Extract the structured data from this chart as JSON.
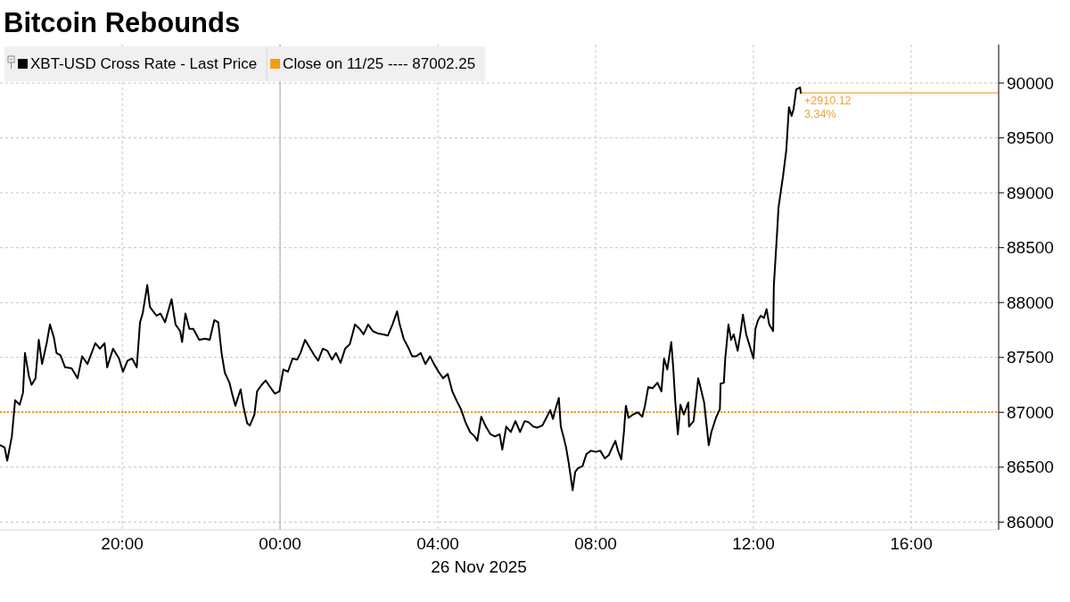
{
  "chart_data": {
    "type": "line",
    "title": "Bitcoin Rebounds",
    "xlabel": "26 Nov 2025",
    "xlim": [
      "2025-11-25T16:54",
      "2025-11-26T18:13"
    ],
    "xticks": [
      {
        "value": "2025-11-25T20:00",
        "label": "20:00"
      },
      {
        "value": "2025-11-26T00:00",
        "label": "00:00"
      },
      {
        "value": "2025-11-26T04:00",
        "label": "04:00"
      },
      {
        "value": "2025-11-26T08:00",
        "label": "08:00"
      },
      {
        "value": "2025-11-26T12:00",
        "label": "12:00"
      },
      {
        "value": "2025-11-26T16:00",
        "label": "16:00"
      }
    ],
    "ylim": [
      85930,
      90350
    ],
    "yticks": [
      86000,
      86500,
      87000,
      87500,
      88000,
      88500,
      89000,
      89500,
      90000
    ],
    "grid": true,
    "legend": "top left",
    "x": [
      "2025-11-25T16:54",
      "2025-11-25T17:01",
      "2025-11-25T17:05",
      "2025-11-25T17:12",
      "2025-11-25T17:17",
      "2025-11-25T17:24",
      "2025-11-25T17:29",
      "2025-11-25T17:32",
      "2025-11-25T17:38",
      "2025-11-25T17:42",
      "2025-11-25T17:48",
      "2025-11-25T17:53",
      "2025-11-25T17:58",
      "2025-11-25T18:05",
      "2025-11-25T18:10",
      "2025-11-25T18:16",
      "2025-11-25T18:20",
      "2025-11-25T18:26",
      "2025-11-25T18:33",
      "2025-11-25T18:43",
      "2025-11-25T18:52",
      "2025-11-25T18:59",
      "2025-11-25T19:07",
      "2025-11-25T19:19",
      "2025-11-25T19:26",
      "2025-11-25T19:33",
      "2025-11-25T19:37",
      "2025-11-25T19:46",
      "2025-11-25T19:55",
      "2025-11-25T20:01",
      "2025-11-25T20:08",
      "2025-11-25T20:15",
      "2025-11-25T20:22",
      "2025-11-25T20:27",
      "2025-11-25T20:31",
      "2025-11-25T20:38",
      "2025-11-25T20:42",
      "2025-11-25T20:52",
      "2025-11-25T20:58",
      "2025-11-25T21:05",
      "2025-11-25T21:15",
      "2025-11-25T21:21",
      "2025-11-25T21:28",
      "2025-11-25T21:31",
      "2025-11-25T21:36",
      "2025-11-25T21:42",
      "2025-11-25T21:48",
      "2025-11-25T21:57",
      "2025-11-25T22:06",
      "2025-11-25T22:13",
      "2025-11-25T22:20",
      "2025-11-25T22:26",
      "2025-11-25T22:31",
      "2025-11-25T22:36",
      "2025-11-25T22:43",
      "2025-11-25T22:47",
      "2025-11-25T22:52",
      "2025-11-25T23:00",
      "2025-11-25T23:04",
      "2025-11-25T23:10",
      "2025-11-25T23:14",
      "2025-11-25T23:21",
      "2025-11-25T23:25",
      "2025-11-25T23:32",
      "2025-11-25T23:38",
      "2025-11-25T23:45",
      "2025-11-25T23:52",
      "2025-11-25T23:59",
      "2025-11-26T00:05",
      "2025-11-26T00:12",
      "2025-11-26T00:19",
      "2025-11-26T00:26",
      "2025-11-26T00:31",
      "2025-11-26T00:38",
      "2025-11-26T00:45",
      "2025-11-26T00:52",
      "2025-11-26T00:58",
      "2025-11-26T01:05",
      "2025-11-26T01:12",
      "2025-11-26T01:19",
      "2025-11-26T01:25",
      "2025-11-26T01:32",
      "2025-11-26T01:39",
      "2025-11-26T01:46",
      "2025-11-26T01:50",
      "2025-11-26T01:54",
      "2025-11-26T02:01",
      "2025-11-26T02:07",
      "2025-11-26T02:14",
      "2025-11-26T02:21",
      "2025-11-26T02:28",
      "2025-11-26T02:37",
      "2025-11-26T02:44",
      "2025-11-26T02:51",
      "2025-11-26T02:58",
      "2025-11-26T03:02",
      "2025-11-26T03:08",
      "2025-11-26T03:15",
      "2025-11-26T03:21",
      "2025-11-26T03:27",
      "2025-11-26T03:34",
      "2025-11-26T03:41",
      "2025-11-26T03:48",
      "2025-11-26T03:55",
      "2025-11-26T04:01",
      "2025-11-26T04:08",
      "2025-11-26T04:15",
      "2025-11-26T04:22",
      "2025-11-26T04:29",
      "2025-11-26T04:35",
      "2025-11-26T04:42",
      "2025-11-26T04:49",
      "2025-11-26T04:56",
      "2025-11-26T05:00",
      "2025-11-26T05:06",
      "2025-11-26T05:13",
      "2025-11-26T05:20",
      "2025-11-26T05:27",
      "2025-11-26T05:34",
      "2025-11-26T05:38",
      "2025-11-26T05:44",
      "2025-11-26T05:51",
      "2025-11-26T05:58",
      "2025-11-26T06:05",
      "2025-11-26T06:12",
      "2025-11-26T06:18",
      "2025-11-26T06:25",
      "2025-11-26T06:31",
      "2025-11-26T06:39",
      "2025-11-26T06:45",
      "2025-11-26T06:51",
      "2025-11-26T06:55",
      "2025-11-26T06:59",
      "2025-11-26T07:04",
      "2025-11-26T07:07",
      "2025-11-26T07:11",
      "2025-11-26T07:15",
      "2025-11-26T07:19",
      "2025-11-26T07:25",
      "2025-11-26T07:29",
      "2025-11-26T07:33",
      "2025-11-26T07:40",
      "2025-11-26T07:46",
      "2025-11-26T07:53",
      "2025-11-26T08:00",
      "2025-11-26T08:07",
      "2025-11-26T08:14",
      "2025-11-26T08:20",
      "2025-11-26T08:26",
      "2025-11-26T08:30",
      "2025-11-26T08:34",
      "2025-11-26T08:39",
      "2025-11-26T08:43",
      "2025-11-26T08:46",
      "2025-11-26T08:50",
      "2025-11-26T08:57",
      "2025-11-26T09:04",
      "2025-11-26T09:11",
      "2025-11-26T09:15",
      "2025-11-26T09:20",
      "2025-11-26T09:27",
      "2025-11-26T09:34",
      "2025-11-26T09:40",
      "2025-11-26T09:44",
      "2025-11-26T09:49",
      "2025-11-26T09:55",
      "2025-11-26T09:58",
      "2025-11-26T10:01",
      "2025-11-26T10:05",
      "2025-11-26T10:09",
      "2025-11-26T10:14",
      "2025-11-26T10:21",
      "2025-11-26T10:22",
      "2025-11-26T10:29",
      "2025-11-26T10:36",
      "2025-11-26T10:41",
      "2025-11-26T10:45",
      "2025-11-26T10:52",
      "2025-11-26T10:56",
      "2025-11-26T11:03",
      "2025-11-26T11:09",
      "2025-11-26T11:10",
      "2025-11-26T11:15",
      "2025-11-26T11:17",
      "2025-11-26T11:22",
      "2025-11-26T11:26",
      "2025-11-26T11:30",
      "2025-11-26T11:36",
      "2025-11-26T11:40",
      "2025-11-26T11:44",
      "2025-11-26T11:49",
      "2025-11-26T11:53",
      "2025-11-26T12:00",
      "2025-11-26T12:03",
      "2025-11-26T12:07",
      "2025-11-26T12:11",
      "2025-11-26T12:16",
      "2025-11-26T12:20",
      "2025-11-26T12:24",
      "2025-11-26T12:30",
      "2025-11-26T12:31",
      "2025-11-26T12:37",
      "2025-11-26T12:38",
      "2025-11-26T12:43",
      "2025-11-26T12:45",
      "2025-11-26T12:50",
      "2025-11-26T12:54",
      "2025-11-26T12:58",
      "2025-11-26T13:01",
      "2025-11-26T13:05",
      "2025-11-26T13:11",
      "2025-11-26T13:12"
    ],
    "series": [
      {
        "name": "XBT-USD Cross Rate - Last Price",
        "color": "#000000",
        "values": [
          86700,
          86680,
          86560,
          86780,
          87110,
          87070,
          87180,
          87540,
          87330,
          87250,
          87310,
          87660,
          87440,
          87630,
          87800,
          87680,
          87540,
          87520,
          87410,
          87400,
          87310,
          87510,
          87440,
          87630,
          87580,
          87630,
          87410,
          87580,
          87490,
          87370,
          87470,
          87490,
          87410,
          87820,
          87900,
          88160,
          87960,
          87880,
          87900,
          87820,
          88030,
          87800,
          87740,
          87640,
          87900,
          87760,
          87760,
          87660,
          87670,
          87660,
          87840,
          87820,
          87540,
          87360,
          87270,
          87170,
          87060,
          87210,
          87060,
          86900,
          86880,
          86980,
          87190,
          87250,
          87290,
          87230,
          87170,
          87190,
          87390,
          87370,
          87490,
          87480,
          87540,
          87660,
          87590,
          87520,
          87470,
          87580,
          87560,
          87480,
          87540,
          87450,
          87580,
          87620,
          87710,
          87800,
          87760,
          87710,
          87800,
          87740,
          87720,
          87710,
          87700,
          87800,
          87920,
          87800,
          87670,
          87590,
          87510,
          87510,
          87540,
          87440,
          87510,
          87430,
          87370,
          87310,
          87350,
          87190,
          87100,
          87030,
          86910,
          86820,
          86780,
          86740,
          86960,
          86870,
          86800,
          86780,
          86800,
          86660,
          86870,
          86820,
          86920,
          86820,
          86920,
          86910,
          86870,
          86860,
          86880,
          86950,
          87020,
          86940,
          87030,
          87130,
          86870,
          86780,
          86680,
          86540,
          86290,
          86460,
          86490,
          86510,
          86620,
          86650,
          86640,
          86650,
          86580,
          86610,
          86690,
          86740,
          86650,
          86570,
          86820,
          87060,
          86950,
          86980,
          87000,
          86960,
          87060,
          87230,
          87220,
          87270,
          87190,
          87490,
          87390,
          87640,
          87410,
          87110,
          86800,
          87070,
          86980,
          87090,
          86870,
          86920,
          87310,
          87190,
          87090,
          86700,
          86820,
          86950,
          87030,
          87260,
          87270,
          87480,
          87800,
          87660,
          87710,
          87560,
          87710,
          87890,
          87710,
          87630,
          87490,
          87760,
          87840,
          87880,
          87860,
          87940,
          87800,
          87740,
          88150,
          88740,
          88860,
          89070,
          89150,
          89390,
          89780,
          89700,
          89760,
          89940,
          89960,
          89910
        ]
      }
    ],
    "ref_lines": [
      {
        "axis": "x",
        "value": "2025-11-26T00:00",
        "color": "#b4b4b4",
        "line_style": "solid"
      },
      {
        "axis": "y",
        "value": 87002.25,
        "label": "Close on 11/25 ---- 87002.25",
        "color": "#f39c12",
        "line_style": "dotted"
      },
      {
        "axis": "y",
        "value": 89910,
        "color": "#eba33a",
        "line_style": "solid"
      }
    ],
    "annotations": [
      {
        "text": "+2910.12",
        "x": "2025-11-26T13:12",
        "y": 89910
      },
      {
        "text": "3.34%",
        "x": "2025-11-26T13:12",
        "y": 89910
      }
    ]
  }
}
